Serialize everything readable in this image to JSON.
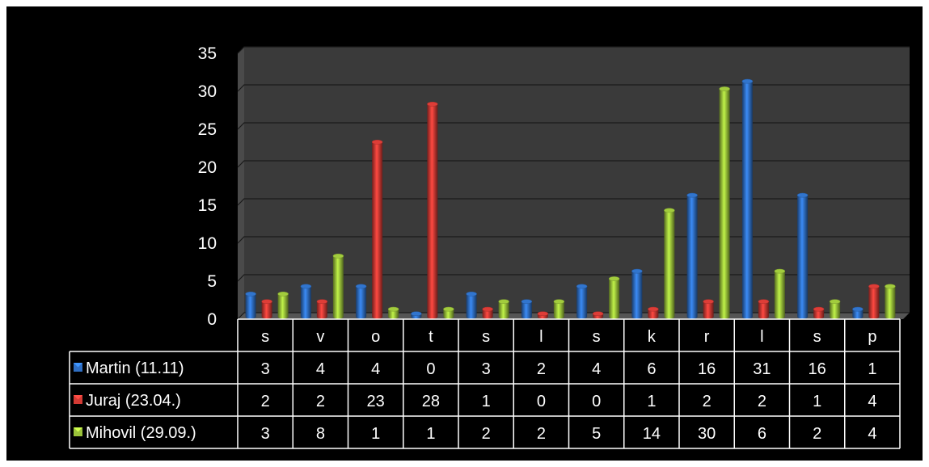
{
  "chart_data": {
    "type": "bar",
    "categories": [
      "s",
      "v",
      "o",
      "t",
      "s",
      "l",
      "s",
      "k",
      "r",
      "l",
      "s",
      "p"
    ],
    "series": [
      {
        "name": "Martin (11.11)",
        "color": "#2f6fc4",
        "values": [
          3,
          4,
          4,
          0,
          3,
          2,
          4,
          6,
          16,
          31,
          16,
          1
        ]
      },
      {
        "name": "Juraj (23.04.)",
        "color": "#d33a34",
        "values": [
          2,
          2,
          23,
          28,
          1,
          0,
          0,
          1,
          2,
          2,
          1,
          4
        ]
      },
      {
        "name": "Mihovil (29.09.)",
        "color": "#9ac23a",
        "values": [
          3,
          8,
          1,
          1,
          2,
          2,
          5,
          14,
          30,
          6,
          2,
          4
        ]
      }
    ],
    "yticks": [
      "0",
      "5",
      "10",
      "15",
      "20",
      "25",
      "30",
      "35"
    ],
    "ylim": [
      0,
      35
    ],
    "grid": true,
    "legend": "data-table",
    "style": "3d-bar",
    "background": "#000000",
    "wall_color": "#3a3a3a"
  }
}
